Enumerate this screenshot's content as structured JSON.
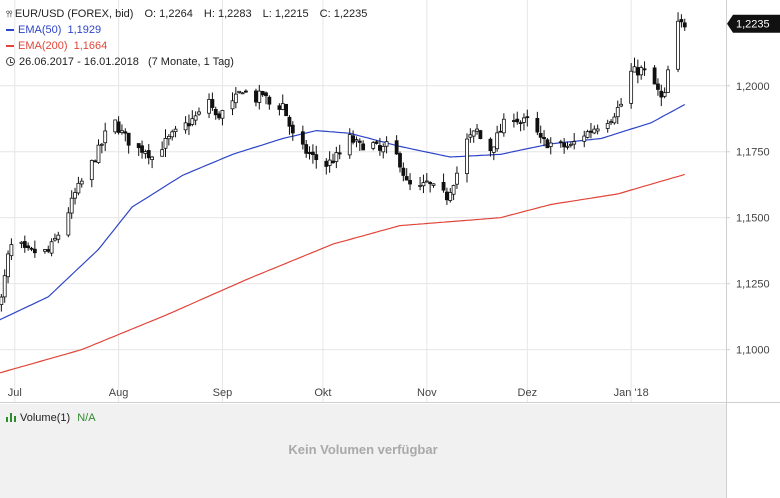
{
  "chart_data": {
    "type": "candlestick",
    "instrument": "EUR/USD (FOREX, bid)",
    "ohlc_summary": {
      "open": {
        "label": "O:",
        "value": "1,2264"
      },
      "high": {
        "label": "H:",
        "value": "1,2283"
      },
      "low": {
        "label": "L:",
        "value": "1,2215"
      },
      "close": {
        "label": "C:",
        "value": "1,2235"
      }
    },
    "indicators": [
      {
        "name": "EMA(50)",
        "value": "1,1929",
        "color": "#2d45c8"
      },
      {
        "name": "EMA(200)",
        "value": "1,1664",
        "color": "#e0463a"
      }
    ],
    "date_range": "26.06.2017 - 16.01.2018",
    "period": "(7 Monate, 1 Tag)",
    "y_ticks": [
      "1,2000",
      "1,1750",
      "1,1500",
      "1,1250",
      "1,1000"
    ],
    "y_tick_values": [
      1.2,
      1.175,
      1.15,
      1.125,
      1.1
    ],
    "ylim": [
      1.09,
      1.2325
    ],
    "x_months": [
      {
        "label": "Jul",
        "day": 5
      },
      {
        "label": "Aug",
        "day": 36
      },
      {
        "label": "Sep",
        "day": 67
      },
      {
        "label": "Okt",
        "day": 97
      },
      {
        "label": "Nov",
        "day": 128
      },
      {
        "label": "Dez",
        "day": 158
      },
      {
        "label": "Jan '18",
        "day": 189
      }
    ],
    "days_in_range": 205,
    "last_price": "1,2235",
    "last_price_value": 1.2235,
    "close_anchors": [
      [
        1,
        1.119
      ],
      [
        3,
        1.135
      ],
      [
        5,
        1.143
      ],
      [
        8,
        1.137
      ],
      [
        12,
        1.137
      ],
      [
        15,
        1.137
      ],
      [
        19,
        1.146
      ],
      [
        23,
        1.159
      ],
      [
        27,
        1.168
      ],
      [
        31,
        1.178
      ],
      [
        34,
        1.188
      ],
      [
        37,
        1.182
      ],
      [
        41,
        1.176
      ],
      [
        44,
        1.176
      ],
      [
        46,
        1.173
      ],
      [
        48,
        1.176
      ],
      [
        52,
        1.181
      ],
      [
        56,
        1.185
      ],
      [
        60,
        1.189
      ],
      [
        63,
        1.195
      ],
      [
        65,
        1.188
      ],
      [
        67,
        1.19
      ],
      [
        70,
        1.193
      ],
      [
        73,
        1.199
      ],
      [
        76,
        1.194
      ],
      [
        79,
        1.197
      ],
      [
        82,
        1.191
      ],
      [
        85,
        1.193
      ],
      [
        88,
        1.181
      ],
      [
        91,
        1.176
      ],
      [
        94,
        1.173
      ],
      [
        98,
        1.17
      ],
      [
        102,
        1.174
      ],
      [
        105,
        1.18
      ],
      [
        108,
        1.177
      ],
      [
        111,
        1.179
      ],
      [
        114,
        1.175
      ],
      [
        117,
        1.178
      ],
      [
        120,
        1.171
      ],
      [
        122,
        1.163
      ],
      [
        125,
        1.16
      ],
      [
        128,
        1.163
      ],
      [
        131,
        1.16
      ],
      [
        134,
        1.158
      ],
      [
        137,
        1.167
      ],
      [
        140,
        1.179
      ],
      [
        143,
        1.183
      ],
      [
        145,
        1.177
      ],
      [
        147,
        1.176
      ],
      [
        150,
        1.183
      ],
      [
        153,
        1.19
      ],
      [
        156,
        1.186
      ],
      [
        159,
        1.187
      ],
      [
        162,
        1.179
      ],
      [
        165,
        1.178
      ],
      [
        168,
        1.177
      ],
      [
        171,
        1.177
      ],
      [
        174,
        1.181
      ],
      [
        177,
        1.183
      ],
      [
        180,
        1.186
      ],
      [
        183,
        1.188
      ],
      [
        186,
        1.193
      ],
      [
        189,
        1.205
      ],
      [
        192,
        1.206
      ],
      [
        195,
        1.203
      ],
      [
        198,
        1.195
      ],
      [
        199,
        1.196
      ],
      [
        201,
        1.215
      ],
      [
        203,
        1.223
      ],
      [
        205,
        1.2235
      ]
    ],
    "ema50_anchors": [
      [
        0,
        1.111
      ],
      [
        15,
        1.12
      ],
      [
        30,
        1.138
      ],
      [
        40,
        1.154
      ],
      [
        55,
        1.166
      ],
      [
        70,
        1.174
      ],
      [
        85,
        1.18
      ],
      [
        95,
        1.183
      ],
      [
        105,
        1.182
      ],
      [
        120,
        1.177
      ],
      [
        135,
        1.173
      ],
      [
        150,
        1.174
      ],
      [
        165,
        1.178
      ],
      [
        180,
        1.18
      ],
      [
        195,
        1.186
      ],
      [
        205,
        1.1929
      ]
    ],
    "ema200_anchors": [
      [
        0,
        1.091
      ],
      [
        25,
        1.1
      ],
      [
        50,
        1.113
      ],
      [
        75,
        1.127
      ],
      [
        100,
        1.14
      ],
      [
        120,
        1.147
      ],
      [
        150,
        1.15
      ],
      [
        165,
        1.155
      ],
      [
        185,
        1.159
      ],
      [
        205,
        1.1664
      ]
    ]
  },
  "volume_panel": {
    "label": "Volume(1)",
    "value": "N/A",
    "empty_message": "Kein Volumen verfügbar"
  },
  "colors": {
    "candle": "#111111",
    "grid": "#e6e6e6",
    "axis_line": "#cfcfcf",
    "price_badge_bg": "#111111",
    "price_badge_fg": "#ffffff",
    "volume_green": "#2e8b2e"
  }
}
